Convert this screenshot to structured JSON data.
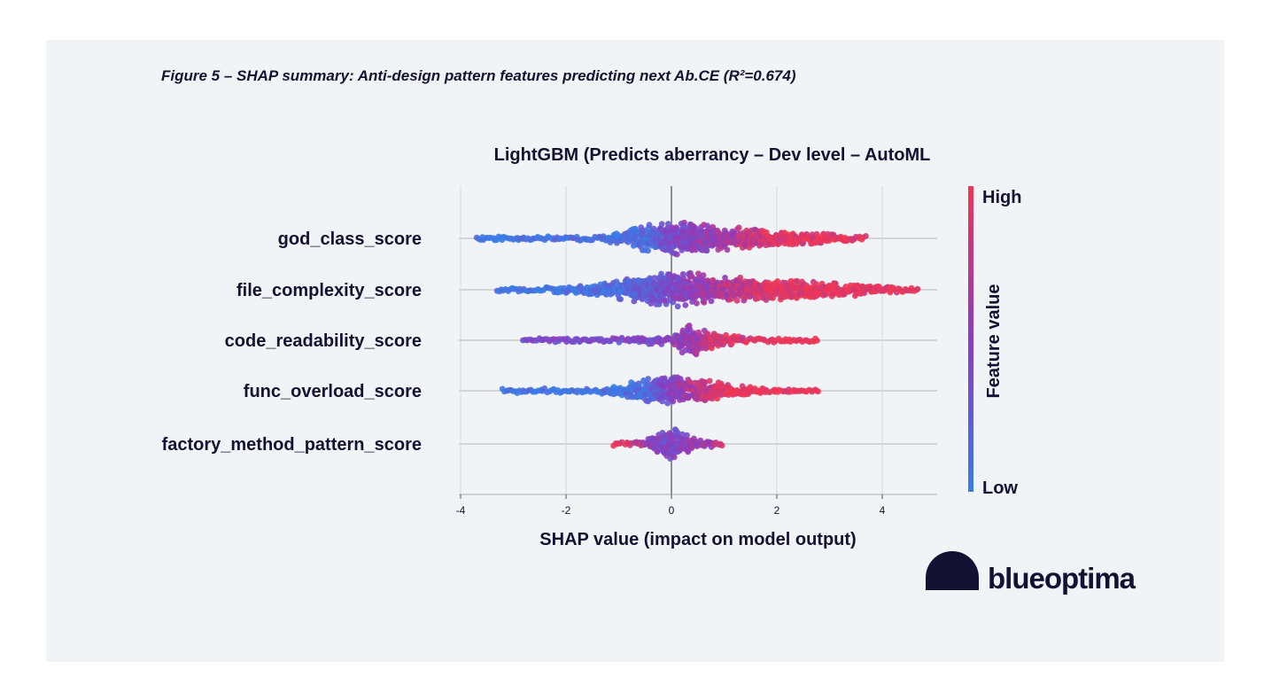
{
  "figure_caption": "Figure 5 – SHAP summary: Anti-design pattern features predicting next Ab.CE (R²=0.674)",
  "brand": {
    "name_part1": "blue",
    "name_part2": "optima",
    "color": "#141233"
  },
  "colors": {
    "high": "#ee3655",
    "mid": "#8a3cc0",
    "low": "#3a7ce6",
    "background": "#f0f4f7"
  },
  "chart_data": {
    "type": "scatter",
    "subtype": "shap-beeswarm",
    "title": "LightGBM (Predicts aberrancy – Dev level – AutoML",
    "xlabel": "SHAP value (impact on model output)",
    "ylabel": "",
    "xlim": [
      -4,
      5
    ],
    "xticks": [
      -4,
      -2,
      0,
      2,
      4
    ],
    "xtick_labels": [
      "-4",
      "-2",
      "0",
      "2",
      "4"
    ],
    "colorbar": {
      "label": "Feature value",
      "high_label": "High",
      "low_label": "Low"
    },
    "features": [
      {
        "name": "god_class_score",
        "range": [
          -3.7,
          3.7
        ],
        "profile": [
          [
            -3.7,
            0.03
          ],
          [
            -3.0,
            0.1
          ],
          [
            -2.5,
            0.08
          ],
          [
            -1.5,
            0.12
          ],
          [
            -1.0,
            0.3
          ],
          [
            -0.5,
            0.7
          ],
          [
            0.0,
            0.95
          ],
          [
            0.5,
            0.85
          ],
          [
            1.0,
            0.65
          ],
          [
            2.0,
            0.45
          ],
          [
            3.0,
            0.28
          ],
          [
            3.5,
            0.15
          ],
          [
            3.7,
            0.04
          ]
        ],
        "color_ramp": [
          [
            -3.7,
            0.0
          ],
          [
            -0.5,
            0.1
          ],
          [
            0.0,
            0.4
          ],
          [
            1.0,
            0.6
          ],
          [
            2.0,
            0.95
          ],
          [
            3.7,
            1.0
          ]
        ]
      },
      {
        "name": "file_complexity_score",
        "range": [
          -3.3,
          4.7
        ],
        "profile": [
          [
            -3.3,
            0.04
          ],
          [
            -2.5,
            0.12
          ],
          [
            -1.5,
            0.3
          ],
          [
            -1.0,
            0.5
          ],
          [
            -0.5,
            0.85
          ],
          [
            0.0,
            1.0
          ],
          [
            0.5,
            0.85
          ],
          [
            1.0,
            0.7
          ],
          [
            2.0,
            0.55
          ],
          [
            3.0,
            0.4
          ],
          [
            4.0,
            0.25
          ],
          [
            4.5,
            0.08
          ],
          [
            4.7,
            0.03
          ]
        ],
        "color_ramp": [
          [
            -3.3,
            0.0
          ],
          [
            -1.0,
            0.1
          ],
          [
            0.0,
            0.4
          ],
          [
            1.0,
            0.7
          ],
          [
            2.0,
            0.95
          ],
          [
            4.7,
            1.0
          ]
        ]
      },
      {
        "name": "code_readability_score",
        "range": [
          -2.8,
          2.8
        ],
        "profile": [
          [
            -2.8,
            0.03
          ],
          [
            -2.0,
            0.06
          ],
          [
            -1.0,
            0.12
          ],
          [
            -0.5,
            0.2
          ],
          [
            0.0,
            0.25
          ],
          [
            0.3,
            0.85
          ],
          [
            0.5,
            0.75
          ],
          [
            0.9,
            0.35
          ],
          [
            1.5,
            0.12
          ],
          [
            2.5,
            0.05
          ],
          [
            2.8,
            0.03
          ]
        ],
        "color_ramp": [
          [
            -2.8,
            0.45
          ],
          [
            -1.0,
            0.4
          ],
          [
            0.0,
            0.5
          ],
          [
            0.4,
            0.55
          ],
          [
            0.8,
            0.85
          ],
          [
            2.8,
            1.0
          ]
        ]
      },
      {
        "name": "func_overload_score",
        "range": [
          -3.2,
          2.8
        ],
        "profile": [
          [
            -3.2,
            0.03
          ],
          [
            -2.5,
            0.08
          ],
          [
            -1.5,
            0.12
          ],
          [
            -1.0,
            0.25
          ],
          [
            -0.5,
            0.65
          ],
          [
            0.0,
            0.85
          ],
          [
            0.5,
            0.65
          ],
          [
            1.0,
            0.45
          ],
          [
            1.5,
            0.25
          ],
          [
            2.0,
            0.1
          ],
          [
            2.8,
            0.03
          ]
        ],
        "color_ramp": [
          [
            -3.2,
            0.0
          ],
          [
            -0.5,
            0.1
          ],
          [
            0.0,
            0.45
          ],
          [
            0.7,
            0.85
          ],
          [
            1.2,
            1.0
          ],
          [
            2.8,
            1.0
          ]
        ]
      },
      {
        "name": "factory_method_pattern_score",
        "range": [
          -1.1,
          1.0
        ],
        "profile": [
          [
            -1.1,
            0.05
          ],
          [
            -0.5,
            0.2
          ],
          [
            -0.2,
            0.6
          ],
          [
            0.0,
            0.95
          ],
          [
            0.2,
            0.6
          ],
          [
            0.5,
            0.3
          ],
          [
            1.0,
            0.05
          ]
        ],
        "color_ramp": [
          [
            -1.1,
            1.0
          ],
          [
            -0.3,
            0.5
          ],
          [
            0.0,
            0.4
          ],
          [
            0.3,
            0.5
          ],
          [
            1.0,
            0.8
          ]
        ]
      }
    ]
  }
}
